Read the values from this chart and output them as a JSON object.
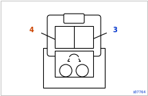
{
  "bg_color": "#ffffff",
  "line_color": "#000000",
  "fill_color": "#ffffff",
  "label_4_color": "#cc4400",
  "label_3_color": "#0033cc",
  "watermark": "i07764",
  "watermark_color": "#0033cc"
}
